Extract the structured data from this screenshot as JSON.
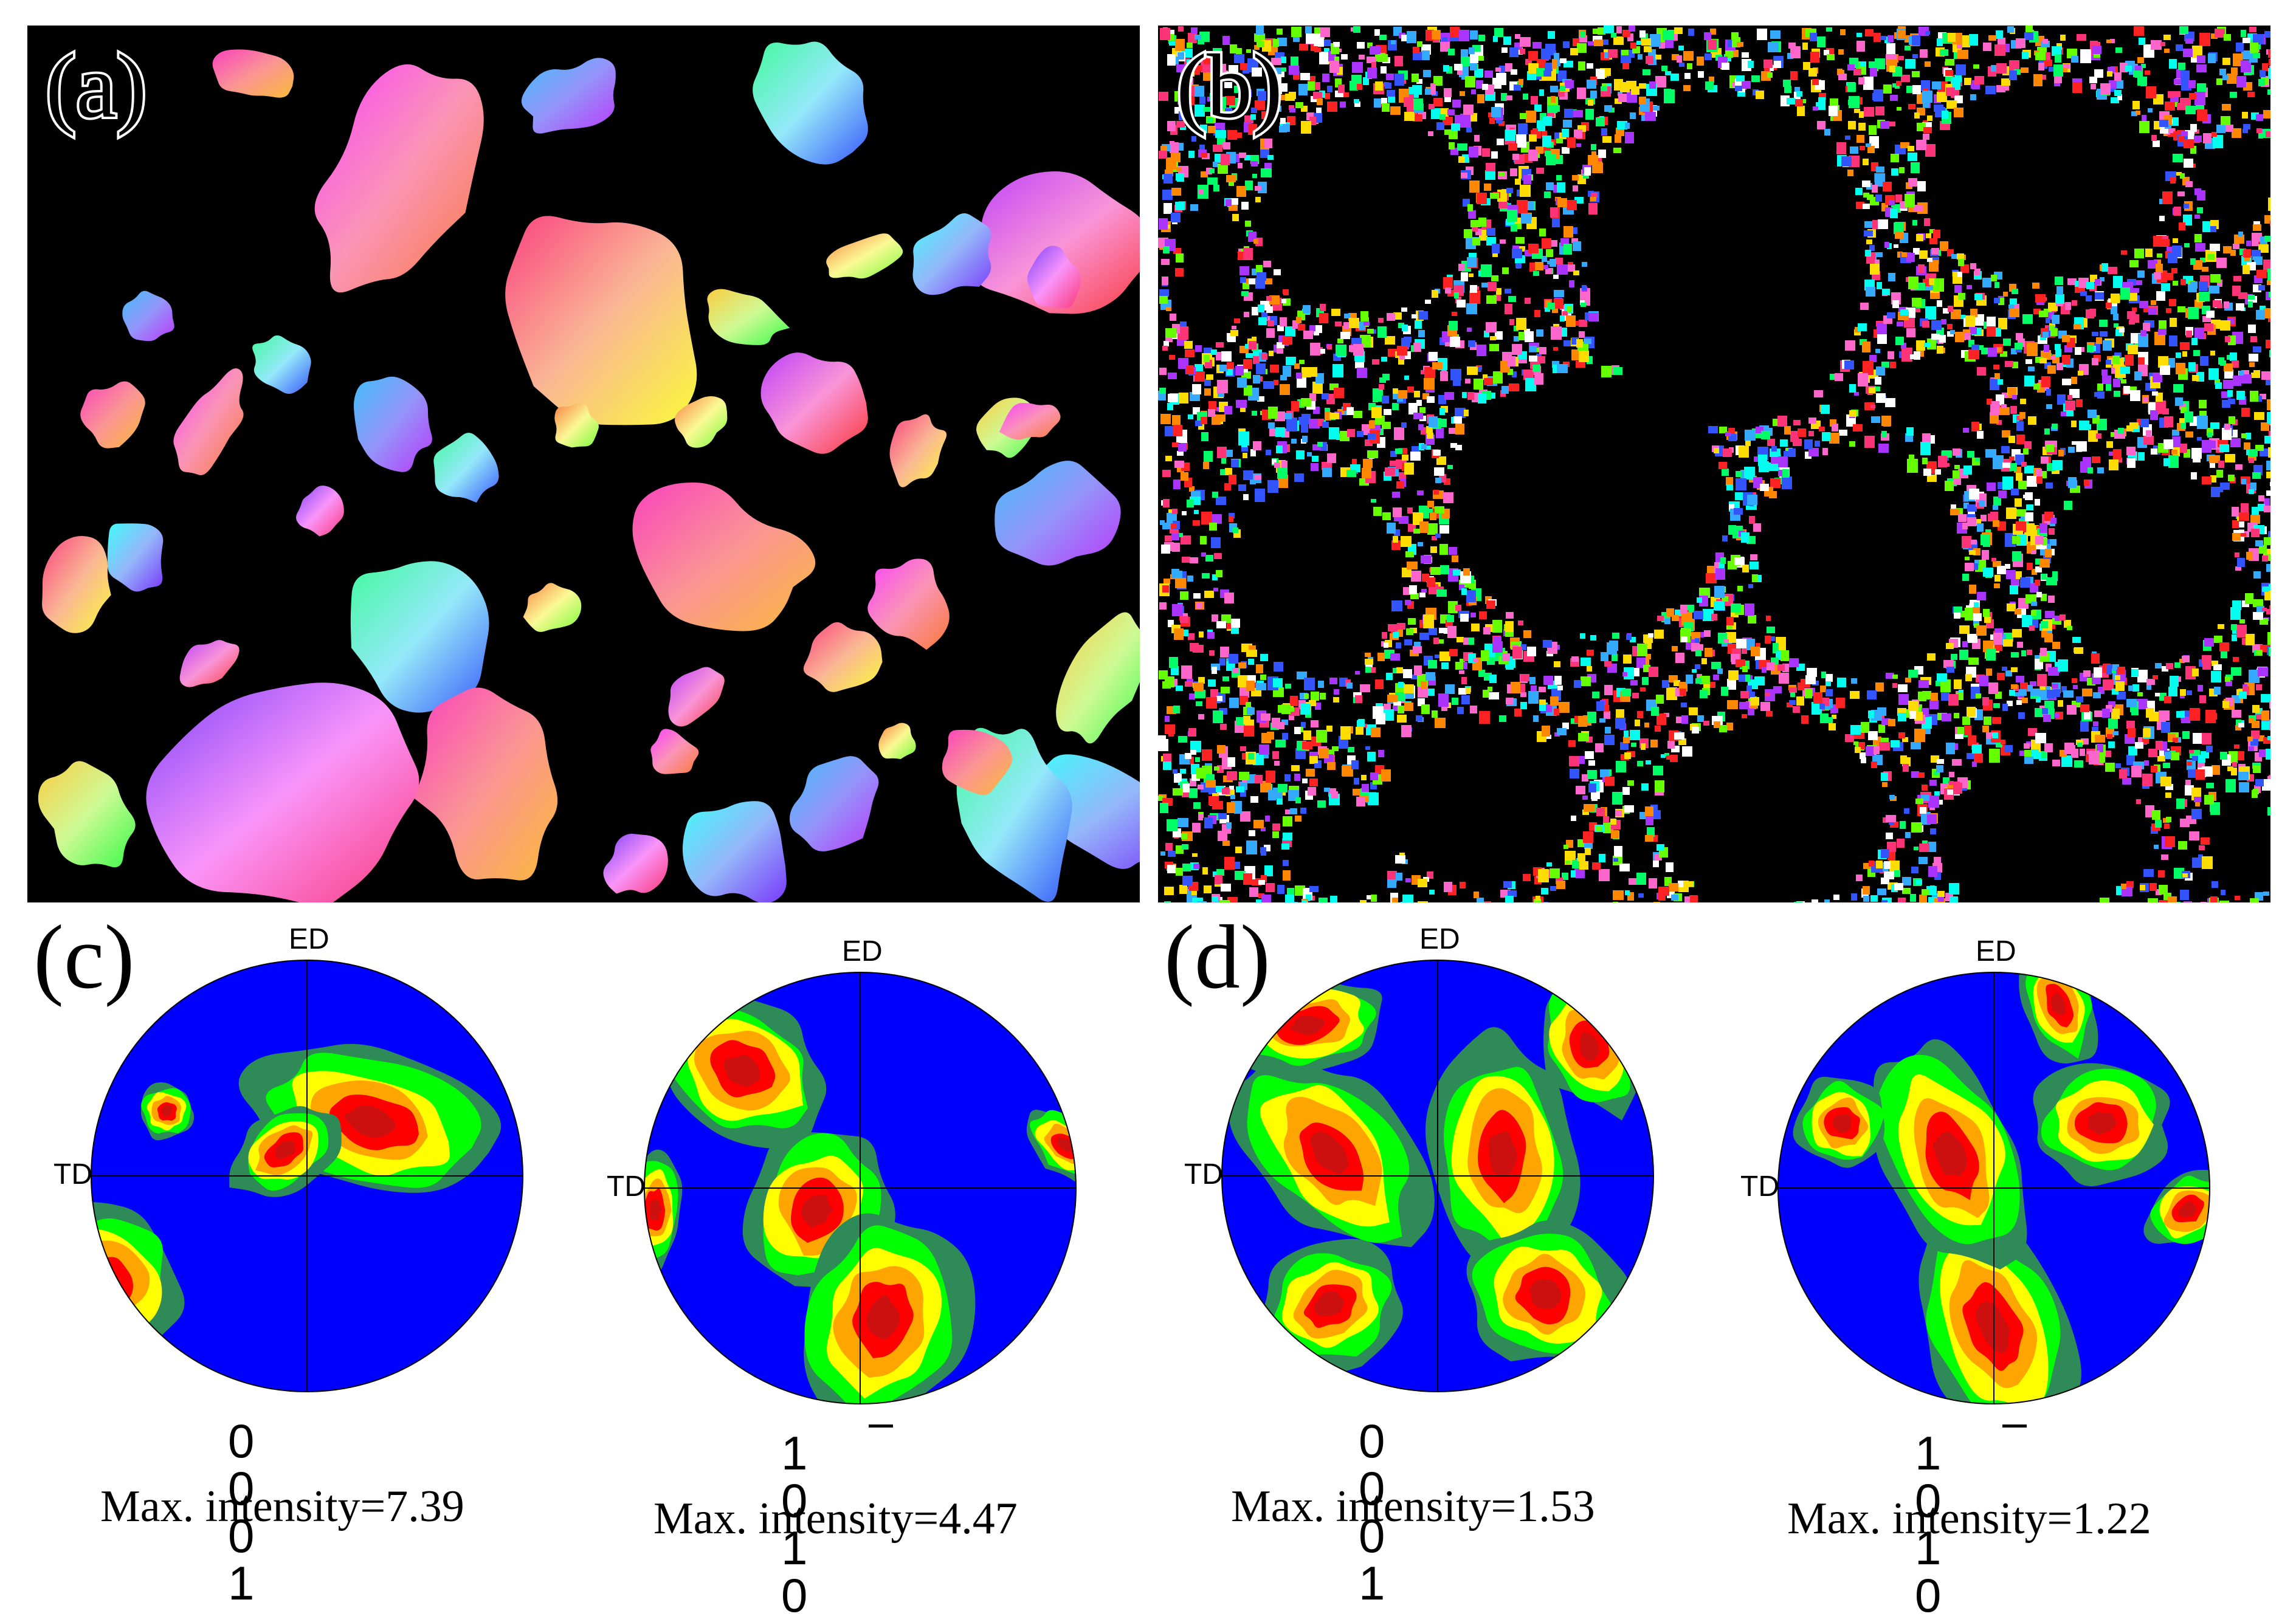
{
  "panels": {
    "a": {
      "letter": "(a)"
    },
    "b": {
      "letter": "(b)"
    },
    "c": {
      "letter": "(c)"
    },
    "d": {
      "letter": "(d)"
    }
  },
  "colors": {
    "map_background": "#000000",
    "pf_low": "#0000ff",
    "pf_dark_green": "#2e8b57",
    "pf_green": "#00ff00",
    "pf_yellow": "#ffff00",
    "pf_orange": "#ffa500",
    "pf_red": "#ff0000",
    "pf_peak": "#cc1010"
  },
  "pole_figures": [
    {
      "id": "c1",
      "top_label": "ED",
      "side_label": "TD",
      "plane": "0 0 0 1",
      "plane_bar": false,
      "caption": "Max. intensity=7.39"
    },
    {
      "id": "c2",
      "top_label": "ED",
      "side_label": "TD",
      "plane": "1 0 1 0",
      "plane_bar": true,
      "caption": "Max. intensity=4.47"
    },
    {
      "id": "d1",
      "top_label": "ED",
      "side_label": "TD",
      "plane": "0 0 0 1",
      "plane_bar": false,
      "caption": "Max. intensity=1.53"
    },
    {
      "id": "d2",
      "top_label": "ED",
      "side_label": "TD",
      "plane": "1 0 1 0",
      "plane_bar": true,
      "caption": "Max. intensity=1.22"
    }
  ]
}
